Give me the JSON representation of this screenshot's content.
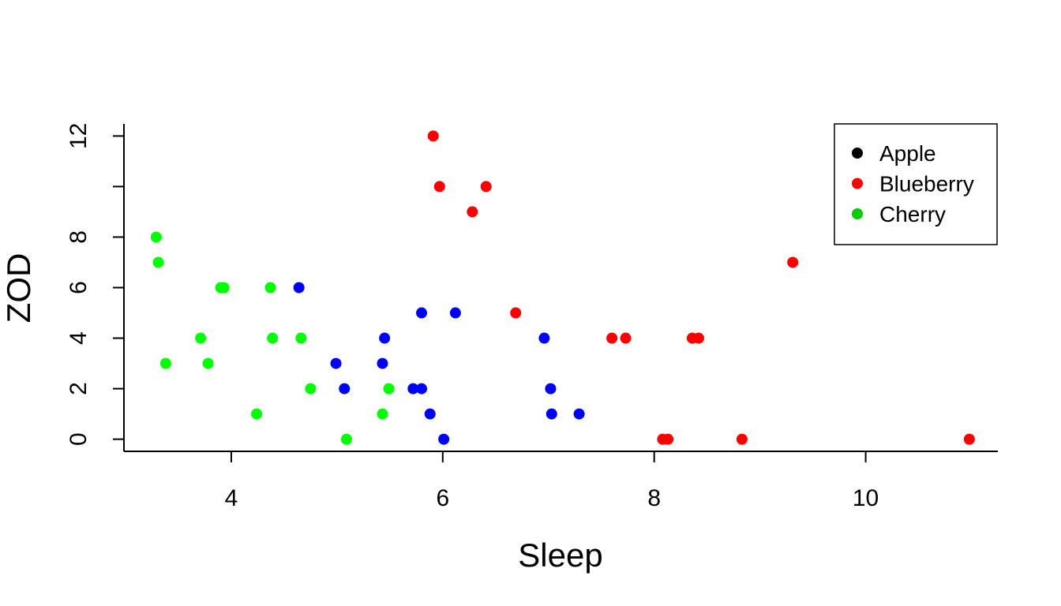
{
  "chart_data": {
    "type": "scatter",
    "title": "",
    "xlabel": "Sleep",
    "ylabel": "ZOD",
    "xlim": [
      2.985,
      11.25
    ],
    "ylim": [
      -0.48,
      12.48
    ],
    "xticks": [
      "4",
      "6",
      "8",
      "10"
    ],
    "xtick_values": [
      4,
      6,
      8,
      10
    ],
    "yticks": [
      "0",
      "2",
      "4",
      "6",
      "8",
      "",
      "12"
    ],
    "ytick_values": [
      0,
      2,
      4,
      6,
      8,
      10,
      12
    ],
    "legend": {
      "position": "top-right",
      "entries": [
        {
          "label": "Apple",
          "color": "#000000"
        },
        {
          "label": "Blueberry",
          "color": "#ff0000"
        },
        {
          "label": "Cherry",
          "color": "#00cc00"
        }
      ]
    },
    "series": [
      {
        "name": "Blue points",
        "color": "#0000ff",
        "points": [
          [
            4.64,
            6
          ],
          [
            5.8,
            5
          ],
          [
            6.12,
            5
          ],
          [
            5.45,
            4
          ],
          [
            6.96,
            4
          ],
          [
            4.99,
            3
          ],
          [
            5.43,
            3
          ],
          [
            5.07,
            2
          ],
          [
            5.72,
            2
          ],
          [
            5.8,
            2
          ],
          [
            7.02,
            2
          ],
          [
            5.88,
            1
          ],
          [
            7.03,
            1
          ],
          [
            7.29,
            1
          ],
          [
            6.01,
            0
          ]
        ]
      },
      {
        "name": "Red points",
        "color": "#ff0000",
        "points": [
          [
            5.91,
            12
          ],
          [
            5.97,
            10
          ],
          [
            6.41,
            10
          ],
          [
            6.28,
            9
          ],
          [
            9.31,
            7
          ],
          [
            6.69,
            5
          ],
          [
            7.6,
            4
          ],
          [
            7.73,
            4
          ],
          [
            8.36,
            4
          ],
          [
            8.42,
            4
          ],
          [
            8.08,
            0
          ],
          [
            8.13,
            0
          ],
          [
            8.83,
            0
          ],
          [
            10.98,
            0
          ]
        ]
      },
      {
        "name": "Green points",
        "color": "#00ff00",
        "points": [
          [
            3.29,
            8
          ],
          [
            3.31,
            7
          ],
          [
            3.9,
            6
          ],
          [
            3.93,
            6
          ],
          [
            4.37,
            6
          ],
          [
            3.71,
            4
          ],
          [
            4.39,
            4
          ],
          [
            4.66,
            4
          ],
          [
            3.38,
            3
          ],
          [
            3.78,
            3
          ],
          [
            4.75,
            2
          ],
          [
            5.49,
            2
          ],
          [
            4.24,
            1
          ],
          [
            5.43,
            1
          ],
          [
            5.09,
            0
          ]
        ]
      }
    ]
  }
}
